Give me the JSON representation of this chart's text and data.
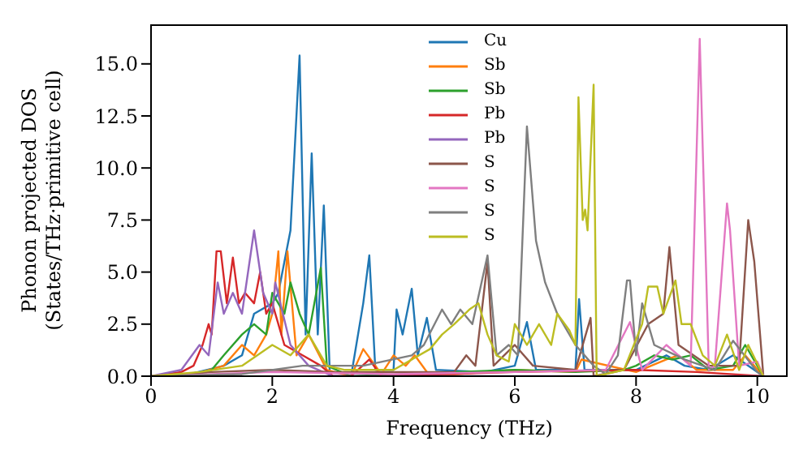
{
  "chart_data": {
    "type": "line",
    "xlabel": "Frequency (THz)",
    "ylabel": "Phonon projected DOS\n(States/THz·primitive cell)",
    "xlim": [
      0,
      10.5
    ],
    "ylim": [
      0,
      16.9
    ],
    "xticks": [
      0,
      2,
      4,
      6,
      8,
      10
    ],
    "yticks": [
      {
        "value": 0,
        "label": "0.0"
      },
      {
        "value": 2.5,
        "label": "2.5"
      },
      {
        "value": 5,
        "label": "5.0"
      },
      {
        "value": 7.5,
        "label": "7.5"
      },
      {
        "value": 10,
        "label": "10.0"
      },
      {
        "value": 12.5,
        "label": "12.5"
      },
      {
        "value": 15,
        "label": "15.0"
      }
    ],
    "grid": false,
    "legend": "top",
    "marker": "none",
    "line_style": "solid",
    "series": [
      {
        "name": "Cu",
        "color": "#1f77b4",
        "x": [
          0,
          0.5,
          1.2,
          1.5,
          1.7,
          2.0,
          2.1,
          2.3,
          2.45,
          2.55,
          2.65,
          2.75,
          2.85,
          2.95,
          3.3,
          3.5,
          3.6,
          3.7,
          4.0,
          4.05,
          4.15,
          4.3,
          4.4,
          4.55,
          4.7,
          5.5,
          6.0,
          6.2,
          6.35,
          7.0,
          7.06,
          7.15,
          8.0,
          8.5,
          8.8,
          9.2,
          9.6,
          10.1
        ],
        "values": [
          0,
          0,
          0.5,
          1,
          3,
          3.5,
          4,
          7,
          15.4,
          2,
          10.7,
          2,
          8.2,
          0,
          0,
          3.5,
          5.8,
          0.3,
          0.3,
          3.2,
          2,
          4.2,
          1,
          2.8,
          0.3,
          0.2,
          0.5,
          2.6,
          0.3,
          0.3,
          3.7,
          0.3,
          0.3,
          1,
          0.5,
          0.3,
          1,
          0
        ]
      },
      {
        "name": "Sb",
        "color": "#ff7f0e",
        "x": [
          0,
          0.6,
          1.2,
          1.5,
          1.7,
          1.9,
          2.0,
          2.1,
          2.15,
          2.25,
          2.4,
          2.6,
          2.9,
          3.3,
          3.5,
          3.8,
          4.0,
          4.2,
          4.35,
          4.6,
          6.0,
          7.0,
          7.1,
          8.0,
          8.5,
          8.7,
          9.0,
          9.6,
          9.8,
          10.1
        ],
        "values": [
          0,
          0,
          0.5,
          1.5,
          1,
          2,
          3,
          6,
          2,
          6,
          1,
          2,
          0.3,
          0,
          1.3,
          0.1,
          1,
          0.5,
          1,
          0,
          0.3,
          0.2,
          0.8,
          0.2,
          0.8,
          1,
          0.3,
          0.3,
          1,
          0
        ]
      },
      {
        "name": "Sb",
        "color": "#2ca02c",
        "x": [
          0,
          0.6,
          1.0,
          1.2,
          1.5,
          1.7,
          1.9,
          2.0,
          2.2,
          2.3,
          2.45,
          2.6,
          2.8,
          2.9,
          3.3,
          5.0,
          6.0,
          7.0,
          7.8,
          8.0,
          8.3,
          8.6,
          8.9,
          9.2,
          9.6,
          9.8,
          10.1
        ],
        "values": [
          0,
          0,
          0.3,
          1,
          2,
          2.5,
          2,
          4,
          3,
          4.5,
          3,
          2,
          5.2,
          0.5,
          0,
          0.2,
          0.3,
          0.2,
          0.3,
          0.5,
          1,
          0.8,
          1,
          0.3,
          0.5,
          1.5,
          0
        ]
      },
      {
        "name": "Pb",
        "color": "#d62728",
        "x": [
          0,
          0.5,
          0.7,
          0.85,
          0.95,
          1.0,
          1.08,
          1.15,
          1.25,
          1.35,
          1.45,
          1.55,
          1.7,
          1.8,
          1.9,
          2.0,
          2.2,
          2.5,
          2.8,
          3.0,
          3.3,
          3.6,
          3.8,
          6.0,
          8.0,
          9.0,
          10.1
        ],
        "values": [
          0,
          0.2,
          0.5,
          1.5,
          2.5,
          2,
          6,
          6,
          3.5,
          5.7,
          3.5,
          4,
          3.5,
          5,
          3,
          3.5,
          1.5,
          1,
          0.5,
          0,
          0,
          0.8,
          0,
          0.2,
          0.3,
          0.2,
          0
        ]
      },
      {
        "name": "Pb",
        "color": "#9467bd",
        "x": [
          0,
          0.5,
          0.8,
          0.95,
          1.1,
          1.2,
          1.35,
          1.5,
          1.7,
          1.85,
          2.0,
          2.05,
          2.3,
          2.6,
          3.0,
          10.1
        ],
        "values": [
          0,
          0.3,
          1.5,
          1,
          4.5,
          3,
          4,
          3,
          7,
          4,
          3,
          4.5,
          1.5,
          0.5,
          0,
          0
        ]
      },
      {
        "name": "S",
        "color": "#8c564b",
        "x": [
          0,
          1.0,
          2.0,
          3.0,
          4.0,
          5.0,
          5.2,
          5.35,
          5.55,
          5.65,
          6.0,
          6.3,
          7.0,
          7.25,
          7.3,
          7.8,
          8.2,
          8.45,
          8.55,
          8.7,
          9.2,
          9.7,
          9.85,
          9.95,
          10.1
        ],
        "values": [
          0,
          0.2,
          0.3,
          0.2,
          0.2,
          0.2,
          1,
          0.5,
          5.5,
          0.5,
          1.5,
          0.5,
          0.3,
          2.8,
          0,
          0.3,
          2.5,
          3,
          6.2,
          1.5,
          0.5,
          0.5,
          7.5,
          5.5,
          0
        ]
      },
      {
        "name": "S",
        "color": "#e377c2",
        "x": [
          0,
          2.0,
          4.0,
          6.0,
          7.5,
          7.9,
          8.1,
          8.5,
          8.9,
          9.05,
          9.2,
          9.3,
          9.5,
          9.55,
          9.7,
          10.0,
          10.1
        ],
        "values": [
          0,
          0.2,
          0.1,
          0.2,
          0.3,
          2.6,
          0.3,
          1.5,
          0.5,
          16.2,
          0.3,
          0.5,
          8.3,
          7,
          0.5,
          0.7,
          0
        ]
      },
      {
        "name": "S",
        "color": "#7f7f7f",
        "x": [
          0,
          1.5,
          2.5,
          3.5,
          4.3,
          4.5,
          4.8,
          4.95,
          5.1,
          5.3,
          5.55,
          5.7,
          5.9,
          6.05,
          6.2,
          6.35,
          6.5,
          6.7,
          7.0,
          7.3,
          7.5,
          7.7,
          7.85,
          7.9,
          8.0,
          8.1,
          8.3,
          8.8,
          9.3,
          9.6,
          10.0,
          10.1
        ],
        "values": [
          0,
          0.1,
          0.5,
          0.5,
          1,
          1.5,
          3.2,
          2.5,
          3.2,
          2.5,
          5.8,
          1,
          1.5,
          1,
          12,
          6.5,
          4.5,
          3,
          1.5,
          0.5,
          0.1,
          1,
          4.6,
          4.6,
          1,
          3.5,
          1.5,
          0.8,
          0.3,
          1.7,
          0.2,
          0
        ]
      },
      {
        "name": "S",
        "color": "#bcbd22",
        "x": [
          0,
          0.8,
          1.5,
          2.0,
          2.3,
          2.6,
          2.9,
          3.2,
          4.0,
          4.6,
          4.8,
          5.0,
          5.25,
          5.4,
          5.55,
          5.7,
          5.9,
          6.0,
          6.2,
          6.4,
          6.6,
          6.7,
          6.9,
          7.0,
          7.05,
          7.12,
          7.16,
          7.2,
          7.3,
          7.35,
          7.8,
          8.1,
          8.2,
          8.35,
          8.45,
          8.65,
          8.75,
          8.9,
          9.1,
          9.3,
          9.5,
          9.7,
          9.85,
          10.1
        ],
        "values": [
          0,
          0.2,
          0.5,
          1.5,
          1,
          2,
          0.5,
          0.3,
          0.3,
          1.3,
          2,
          2.5,
          3.2,
          3.5,
          2,
          1,
          0.7,
          2.5,
          1.5,
          2.5,
          1.5,
          3,
          2.2,
          1.5,
          13.4,
          7.5,
          8,
          7,
          14,
          0,
          0.3,
          2.5,
          4.3,
          4.3,
          3,
          4.6,
          2.5,
          2.5,
          1,
          0.5,
          2,
          0.3,
          1.5,
          0
        ]
      }
    ]
  }
}
